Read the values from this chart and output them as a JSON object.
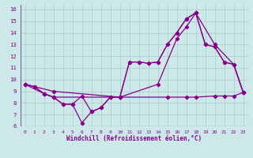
{
  "background_color": "#cce8e8",
  "grid_color": "#aacccc",
  "line_color": "#880088",
  "xlim": [
    -0.5,
    23.5
  ],
  "ylim": [
    6,
    16.4
  ],
  "yticks": [
    6,
    7,
    8,
    9,
    10,
    11,
    12,
    13,
    14,
    15,
    16
  ],
  "xticks": [
    0,
    1,
    2,
    3,
    4,
    5,
    6,
    7,
    8,
    9,
    10,
    11,
    12,
    13,
    14,
    15,
    16,
    17,
    18,
    19,
    20,
    21,
    22,
    23
  ],
  "xlabel": "Windchill (Refroidissement éolien,°C)",
  "line1_x": [
    0,
    1,
    2,
    3,
    4,
    5,
    6,
    7,
    8,
    9,
    10,
    11,
    12,
    13,
    14,
    15,
    16,
    17,
    18,
    19,
    20,
    21,
    22,
    23
  ],
  "line1_y": [
    9.6,
    9.4,
    8.8,
    8.5,
    7.9,
    7.9,
    8.6,
    7.25,
    7.6,
    8.5,
    8.5,
    11.5,
    11.5,
    11.4,
    11.5,
    13.0,
    14.0,
    15.2,
    15.7,
    13.0,
    12.8,
    11.5,
    11.3,
    8.9
  ],
  "line2_x": [
    0,
    1,
    2,
    3,
    4,
    5,
    6,
    7,
    8,
    9,
    10,
    11,
    12,
    13,
    14,
    15,
    16,
    17,
    18,
    19,
    20,
    21,
    22,
    23
  ],
  "line2_y": [
    9.6,
    9.4,
    8.8,
    8.5,
    7.9,
    7.9,
    6.3,
    7.25,
    7.6,
    8.5,
    8.5,
    11.5,
    11.5,
    11.4,
    11.5,
    13.0,
    14.0,
    15.2,
    15.7,
    13.0,
    12.8,
    11.5,
    11.3,
    8.9
  ],
  "line3_x": [
    0,
    2,
    3,
    10,
    15,
    17,
    18,
    20,
    21,
    22,
    23
  ],
  "line3_y": [
    9.6,
    8.8,
    8.5,
    8.5,
    8.5,
    8.5,
    8.5,
    8.6,
    8.6,
    8.6,
    8.9
  ],
  "line4_x": [
    0,
    3,
    10,
    14,
    16,
    17,
    18,
    20,
    22,
    23
  ],
  "line4_y": [
    9.6,
    9.0,
    8.5,
    9.6,
    13.5,
    14.5,
    15.7,
    13.0,
    11.3,
    8.9
  ]
}
